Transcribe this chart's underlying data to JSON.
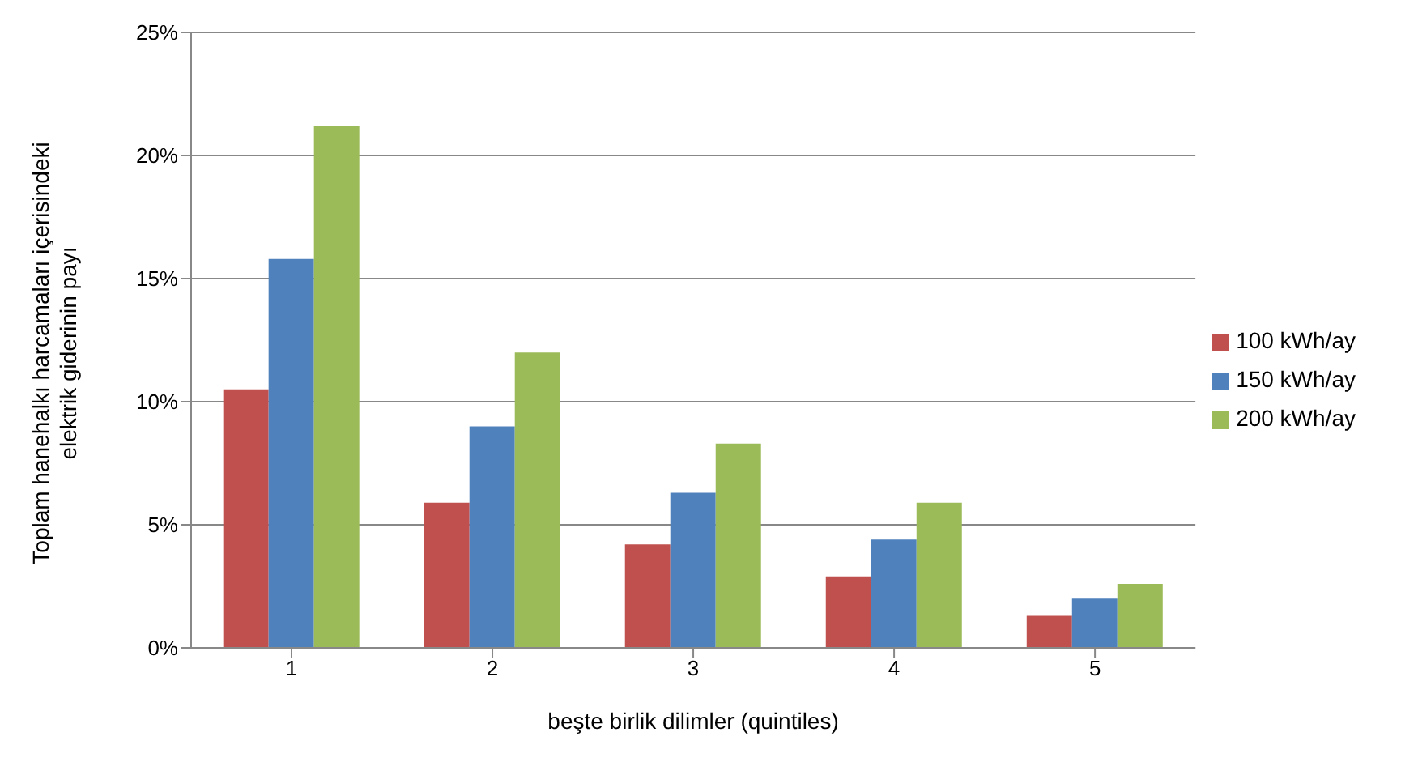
{
  "chart_data": {
    "type": "bar",
    "xlabel": "beşte birlik dilimler (quintiles)",
    "ylabel": "Toplam hanehalkı harcamaları içerisindeki\nelektrik giderinin payı",
    "categories": [
      "1",
      "2",
      "3",
      "4",
      "5"
    ],
    "series": [
      {
        "name": "100 kWh/ay",
        "color": "#c0504d",
        "values": [
          10.5,
          5.9,
          4.2,
          2.9,
          1.3
        ]
      },
      {
        "name": "150 kWh/ay",
        "color": "#4f81bd",
        "values": [
          15.8,
          9.0,
          6.3,
          4.4,
          2.0
        ]
      },
      {
        "name": "200 kWh/ay",
        "color": "#9bbb59",
        "values": [
          21.2,
          12.0,
          8.3,
          5.9,
          2.6
        ]
      }
    ],
    "ylim": [
      0,
      25
    ],
    "yticks": [
      {
        "value": 0,
        "label": "0%"
      },
      {
        "value": 5,
        "label": "5%"
      },
      {
        "value": 10,
        "label": "10%"
      },
      {
        "value": 15,
        "label": "15%"
      },
      {
        "value": 20,
        "label": "20%"
      },
      {
        "value": 25,
        "label": "25%"
      }
    ],
    "grid": "y",
    "legend": "right"
  }
}
